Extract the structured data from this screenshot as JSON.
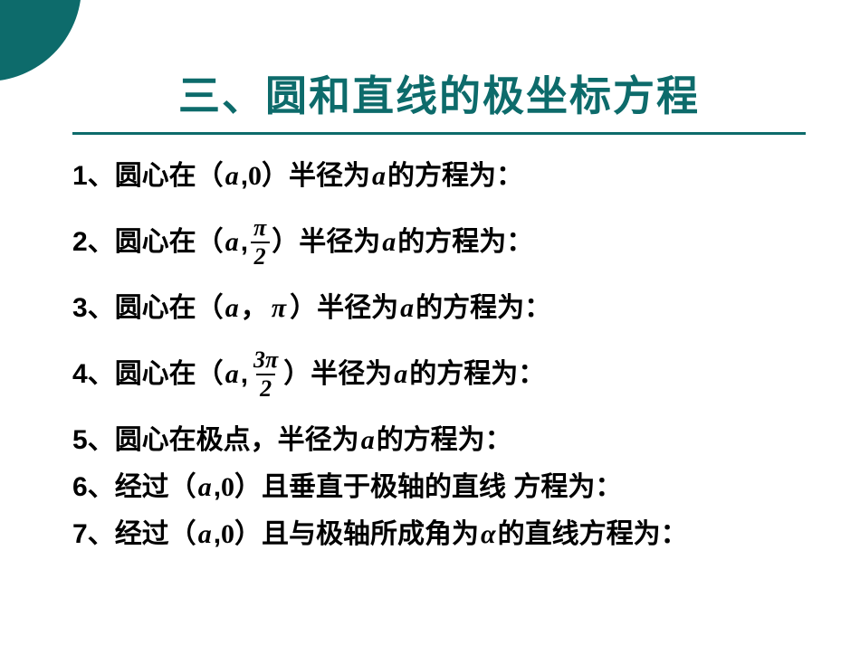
{
  "styling": {
    "background_color": "#ffffff",
    "accent_color": "#0d6b6b",
    "text_color": "#000000",
    "title_fontsize": 46,
    "body_fontsize": 30,
    "frac_fontsize": 26,
    "corner_circle_color": "#0d6b6b"
  },
  "title": "三、圆和直线的极坐标方程",
  "items": [
    {
      "num": "1、",
      "prefix": "圆心在（",
      "param": "a",
      "sep": ",",
      "angle_type": "plain",
      "angle": "0",
      "after_paren": "）半径为",
      "radius_var": "a",
      "suffix": "的方程为："
    },
    {
      "num": "2、",
      "prefix": "圆心在（",
      "param": "a",
      "sep": ",",
      "angle_type": "frac",
      "frac_top": "π",
      "frac_bot": "2",
      "after_paren": "）半径为",
      "radius_var": "a",
      "suffix": "的方程为："
    },
    {
      "num": "3、",
      "prefix": "圆心在（",
      "param": "a",
      "sep": "，",
      "angle_type": "pi",
      "angle": "π",
      "after_paren": "）半径为",
      "radius_var": "a",
      "suffix": "的方程为："
    },
    {
      "num": "4、",
      "prefix": "圆心在（",
      "param": "a",
      "sep": ",",
      "angle_type": "frac",
      "frac_top": "3π",
      "frac_bot": "2",
      "after_paren": "）半径为",
      "radius_var": "a",
      "suffix": "的方程为："
    },
    {
      "num": "5、",
      "full_text_before": "圆心在极点，半径为 ",
      "radius_var": "a",
      "suffix": "的方程为："
    },
    {
      "num": "6、",
      "prefix": "经过（",
      "param": "a",
      "sep": ",",
      "angle_type": "plain",
      "angle": "0",
      "after_paren": "）且垂直于极轴的直线 方程为："
    },
    {
      "num": "7、",
      "prefix": "经过（",
      "param": "a",
      "sep": ",",
      "angle_type": "plain",
      "angle": "0",
      "after_paren": "）且与极轴所成角为 ",
      "alpha_var": "α",
      "suffix": "的直线方程为："
    }
  ]
}
